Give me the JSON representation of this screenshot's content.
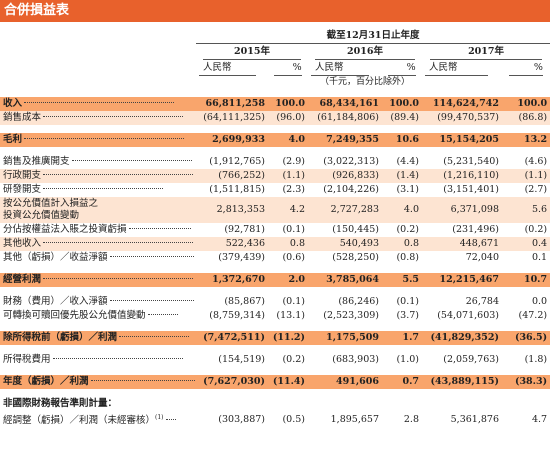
{
  "title": "合併損益表",
  "table": {
    "period_header": "截至12月31日止年度",
    "columns": [
      {
        "year": "2015年",
        "currency": "人民幣",
        "percent": "%"
      },
      {
        "year": "2016年",
        "currency": "人民幣",
        "percent": "%"
      },
      {
        "year": "2017年",
        "currency": "人民幣",
        "percent": "%"
      }
    ],
    "unit_note": "（千元，百分比除外）",
    "rows": [
      {
        "label": "收入",
        "values": [
          "66,811,258",
          "100.0",
          "68,434,161",
          "100.0",
          "114,624,742",
          "100.0"
        ]
      },
      {
        "label": "銷售成本",
        "values": [
          "(64,111,325)",
          "(96.0)",
          "(61,184,806)",
          "(89.4)",
          "(99,470,537)",
          "(86.8)"
        ]
      },
      {
        "label": "毛利",
        "values": [
          "2,699,933",
          "4.0",
          "7,249,355",
          "10.6",
          "15,154,205",
          "13.2"
        ]
      },
      {
        "label": "銷售及推廣開支",
        "values": [
          "(1,912,765)",
          "(2.9)",
          "(3,022,313)",
          "(4.4)",
          "(5,231,540)",
          "(4.6)"
        ]
      },
      {
        "label": "行政開支",
        "values": [
          "(766,252)",
          "(1.1)",
          "(926,833)",
          "(1.4)",
          "(1,216,110)",
          "(1.1)"
        ]
      },
      {
        "label": "研發開支",
        "values": [
          "(1,511,815)",
          "(2.3)",
          "(2,104,226)",
          "(3.1)",
          "(3,151,401)",
          "(2.7)"
        ]
      },
      {
        "label": [
          "按公允價值計入損益之",
          "投資公允價值變動"
        ],
        "values": [
          "2,813,353",
          "4.2",
          "2,727,283",
          "4.0",
          "6,371,098",
          "5.6"
        ]
      },
      {
        "label": "分佔按權益法入賬之投資虧損",
        "values": [
          "(92,781)",
          "(0.1)",
          "(150,445)",
          "(0.2)",
          "(231,496)",
          "(0.2)"
        ]
      },
      {
        "label": "其他收入",
        "values": [
          "522,436",
          "0.8",
          "540,493",
          "0.8",
          "448,671",
          "0.4"
        ]
      },
      {
        "label": "其他（虧損）／收益淨額",
        "values": [
          "(379,439)",
          "(0.6)",
          "(528,250)",
          "(0.8)",
          "72,040",
          "0.1"
        ]
      },
      {
        "label": "經營利潤",
        "values": [
          "1,372,670",
          "2.0",
          "3,785,064",
          "5.5",
          "12,215,467",
          "10.7"
        ]
      },
      {
        "label": "財務（費用）／收入淨額",
        "values": [
          "(85,867)",
          "(0.1)",
          "(86,246)",
          "(0.1)",
          "26,784",
          "0.0"
        ]
      },
      {
        "label": "可轉換可贖回優先股公允價值變動",
        "values": [
          "(8,759,314)",
          "(13.1)",
          "(2,523,309)",
          "(3.7)",
          "(54,071,603)",
          "(47.2)"
        ]
      },
      {
        "label": "除所得稅前（虧損）／利潤",
        "values": [
          "(7,472,511)",
          "(11.2)",
          "1,175,509",
          "1.7",
          "(41,829,352)",
          "(36.5)"
        ]
      },
      {
        "label": "所得稅費用",
        "values": [
          "(154,519)",
          "(0.2)",
          "(683,903)",
          "(1.0)",
          "(2,059,763)",
          "(1.8)"
        ]
      },
      {
        "label": "年度（虧損）／利潤",
        "values": [
          "(7,627,030)",
          "(11.4)",
          "491,606",
          "0.7",
          "(43,889,115)",
          "(38.3)"
        ]
      },
      {
        "label": "非國際財務報告準則計量："
      },
      {
        "label": "經調整（虧損）／利潤（未經審核）",
        "note_ref": "(1)",
        "values": [
          "(303,887)",
          "(0.5)",
          "1,895,657",
          "2.8",
          "5,361,876",
          "4.7"
        ]
      }
    ]
  }
}
